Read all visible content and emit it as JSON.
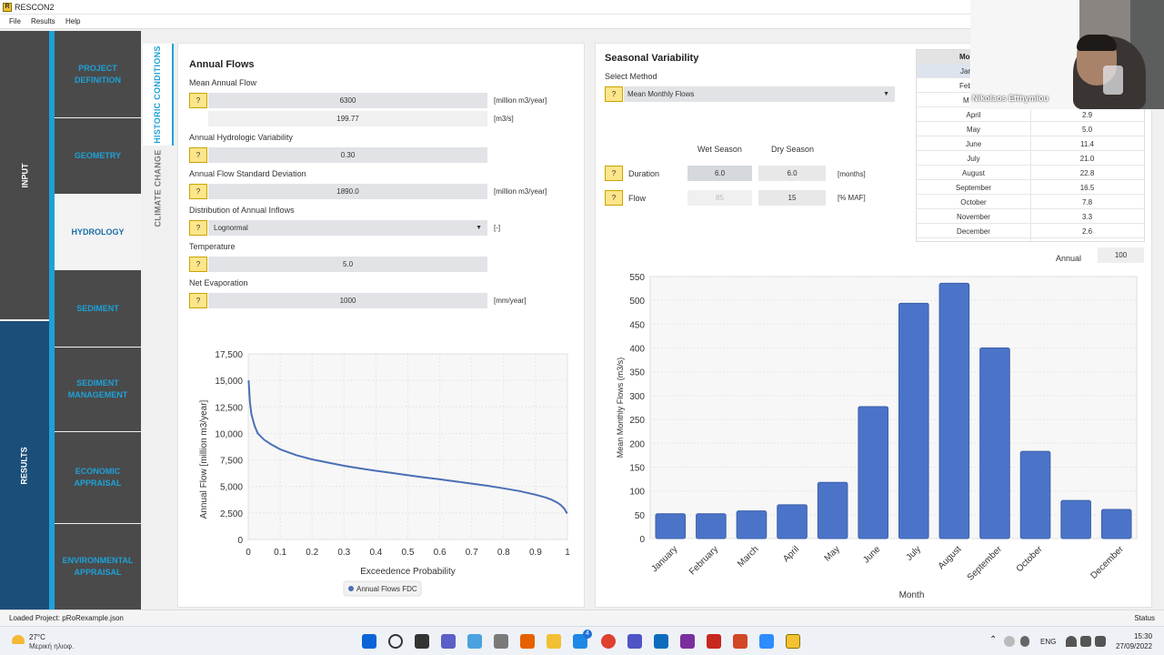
{
  "window": {
    "title": "RESCON2"
  },
  "menu": [
    "File",
    "Results",
    "Help"
  ],
  "left_tabs": {
    "input": "INPUT",
    "results": "RESULTS"
  },
  "nav": [
    "PROJECT\nDEFINITION",
    "GEOMETRY",
    "HYDROLOGY",
    "SEDIMENT",
    "SEDIMENT\nMANAGEMENT",
    "ECONOMIC\nAPPRAISAL",
    "ENVIRONMENTAL\nAPPRAISAL"
  ],
  "vtabs": {
    "historic": "HISTORIC CONDITIONS",
    "climate": "CLIMATE CHANGE"
  },
  "help_label": "?",
  "annual": {
    "title": "Annual Flows",
    "maf_label": "Mean Annual Flow",
    "maf_value": "6300",
    "maf_unit": "[million m3/year]",
    "maf_m3s": "199.77",
    "maf_m3s_unit": "[m3/s]",
    "ahv_label": "Annual Hydrologic Variability",
    "ahv_value": "0.30",
    "std_label": "Annual Flow Standard Deviation",
    "std_value": "1890.0",
    "std_unit": "[million m3/year]",
    "dist_label": "Distribution of Annual Inflows",
    "dist_value": "Lognormal",
    "dist_unit": "[-]",
    "temp_label": "Temperature",
    "temp_value": "5.0",
    "evap_label": "Net Evaporation",
    "evap_value": "1000",
    "evap_unit": "[mm/year]"
  },
  "seasonal": {
    "title": "Seasonal Variability",
    "method_label": "Select Method",
    "method_value": "Mean Monthly Flows",
    "wet_header": "Wet Season",
    "dry_header": "Dry Season",
    "duration_label": "Duration",
    "duration_wet": "6.0",
    "duration_dry": "6.0",
    "duration_unit": "[months]",
    "flow_label": "Flow",
    "flow_wet": "85",
    "flow_dry": "15",
    "flow_unit": "[% MAF]",
    "annual_label": "Annual",
    "annual_value": "100"
  },
  "month_table": {
    "header": "Mo",
    "rows": [
      [
        "April",
        "2.9"
      ],
      [
        "May",
        "5.0"
      ],
      [
        "June",
        "11.4"
      ],
      [
        "July",
        "21.0"
      ],
      [
        "August",
        "22.8"
      ],
      [
        "September",
        "16.5"
      ],
      [
        "October",
        "7.8"
      ],
      [
        "November",
        "3.3"
      ],
      [
        "December",
        "2.6"
      ]
    ],
    "partial": [
      "Jan",
      "Feb",
      "M"
    ]
  },
  "video": {
    "name": "Nikolaos Efthymiou"
  },
  "status": {
    "left": "Loaded Project: pRoRexample.json",
    "right": "Status"
  },
  "taskbar": {
    "temp": "27°C",
    "weather": "Μερική ηλιοφ.",
    "lang": "ENG",
    "time": "15:30",
    "date": "27/09/2022",
    "badge": "4"
  },
  "chart_data": [
    {
      "type": "line",
      "xlabel": "Exceedence Probability",
      "ylabel": "Annual Flow [million m3/year]",
      "xlim": [
        0,
        1
      ],
      "ylim": [
        0,
        17500
      ],
      "xticks": [
        "0",
        "0.1",
        "0.2",
        "0.3",
        "0.4",
        "0.5",
        "0.6",
        "0.7",
        "0.8",
        "0.9",
        "1"
      ],
      "yticks": [
        "0",
        "2,500",
        "5,000",
        "7,500",
        "10,000",
        "12,500",
        "15,000",
        "17,500"
      ],
      "series": [
        {
          "name": "Annual Flows FDC",
          "color": "#4a6fb5",
          "x": [
            0.001,
            0.005,
            0.01,
            0.02,
            0.03,
            0.05,
            0.07,
            0.1,
            0.15,
            0.2,
            0.25,
            0.3,
            0.35,
            0.4,
            0.45,
            0.5,
            0.55,
            0.6,
            0.65,
            0.7,
            0.75,
            0.8,
            0.85,
            0.9,
            0.93,
            0.95,
            0.97,
            0.98,
            0.99,
            0.999
          ],
          "y": [
            15000,
            13000,
            11800,
            10700,
            10000,
            9400,
            9000,
            8500,
            7950,
            7550,
            7250,
            6950,
            6700,
            6480,
            6270,
            6060,
            5860,
            5670,
            5470,
            5270,
            5060,
            4820,
            4560,
            4220,
            3970,
            3760,
            3450,
            3220,
            2920,
            2450
          ]
        }
      ],
      "legend": "bottom"
    },
    {
      "type": "bar",
      "xlabel": "Month",
      "ylabel": "Mean Monthly Flows (m3/s)",
      "ylim": [
        0,
        550
      ],
      "yticks": [
        "0",
        "50",
        "100",
        "150",
        "200",
        "250",
        "300",
        "350",
        "400",
        "450",
        "500",
        "550"
      ],
      "categories": [
        "January",
        "February",
        "March",
        "April",
        "May",
        "June",
        "July",
        "August",
        "September",
        "October",
        "",
        "December"
      ],
      "values": [
        52,
        52,
        58,
        71,
        118,
        277,
        494,
        536,
        400,
        183,
        80,
        61
      ],
      "color": "#4b74c8"
    }
  ]
}
